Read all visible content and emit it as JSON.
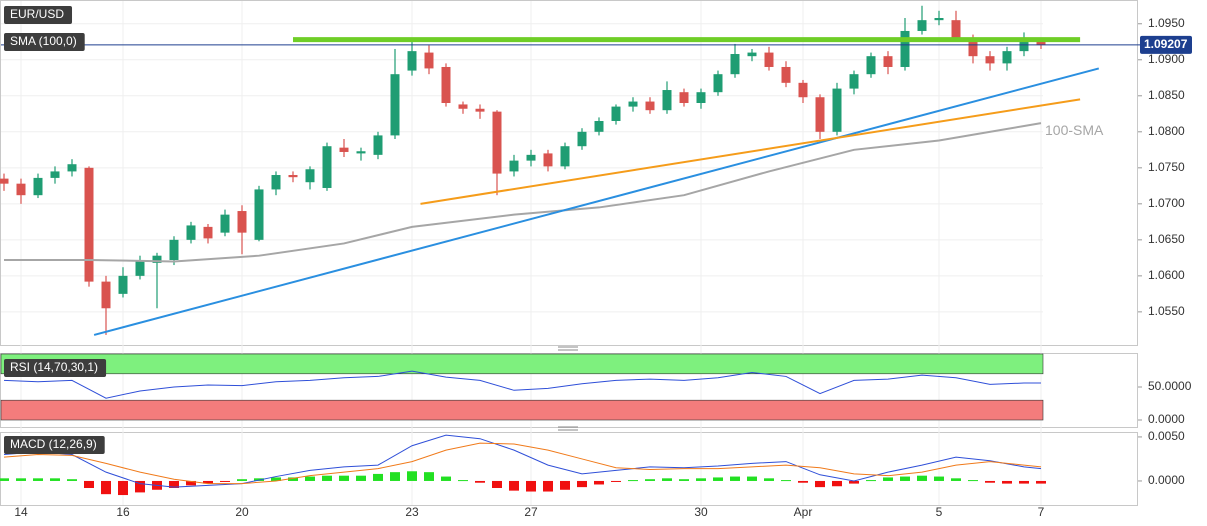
{
  "chart_data": [
    {
      "type": "candlestick",
      "title": "EUR/USD",
      "indicator_label": "SMA (100,0)",
      "categories": [
        null,
        "14",
        null,
        null,
        null,
        null,
        null,
        "16",
        null,
        null,
        null,
        null,
        null,
        null,
        "20",
        null,
        null,
        null,
        null,
        null,
        null,
        null,
        null,
        null,
        "23",
        null,
        null,
        null,
        null,
        null,
        null,
        "27",
        null,
        null,
        null,
        null,
        null,
        null,
        null,
        null,
        null,
        "30",
        null,
        null,
        null,
        null,
        null,
        "Apr",
        null,
        null,
        null,
        null,
        null,
        null,
        null,
        "5",
        null,
        null,
        null,
        null,
        null,
        "7"
      ],
      "candles": [
        [
          1.0735,
          1.0742,
          1.0718,
          1.0728
        ],
        [
          1.0728,
          1.0735,
          1.07,
          1.0712
        ],
        [
          1.0712,
          1.0742,
          1.0708,
          1.0736
        ],
        [
          1.0736,
          1.0752,
          1.0728,
          1.0745
        ],
        [
          1.0745,
          1.0762,
          1.0738,
          1.0755
        ],
        [
          1.075,
          1.0752,
          1.0585,
          1.0592
        ],
        [
          1.0592,
          1.06,
          1.0518,
          1.0555
        ],
        [
          1.0575,
          1.0612,
          1.057,
          1.06
        ],
        [
          1.06,
          1.0628,
          1.0595,
          1.062
        ],
        [
          1.0618,
          1.0632,
          1.0555,
          1.0628
        ],
        [
          1.0622,
          1.0655,
          1.0615,
          1.065
        ],
        [
          1.065,
          1.0675,
          1.0645,
          1.067
        ],
        [
          1.0668,
          1.0672,
          1.0645,
          1.0652
        ],
        [
          1.066,
          1.0692,
          1.0655,
          1.0685
        ],
        [
          1.069,
          1.0698,
          1.063,
          1.066
        ],
        [
          1.065,
          1.0725,
          1.0648,
          1.072
        ],
        [
          1.072,
          1.0745,
          1.0712,
          1.074
        ],
        [
          1.074,
          1.0745,
          1.073,
          1.0737
        ],
        [
          1.073,
          1.0752,
          1.072,
          1.0748
        ],
        [
          1.0722,
          1.0785,
          1.0718,
          1.078
        ],
        [
          1.0778,
          1.079,
          1.0765,
          1.0772
        ],
        [
          1.077,
          1.0778,
          1.076,
          1.0773
        ],
        [
          1.0768,
          1.08,
          1.0762,
          1.0795
        ],
        [
          1.0795,
          1.0915,
          1.079,
          1.088
        ],
        [
          1.0885,
          1.0925,
          1.0878,
          1.0912
        ],
        [
          1.091,
          1.092,
          1.088,
          1.0888
        ],
        [
          1.089,
          1.0895,
          1.0835,
          1.084
        ],
        [
          1.0838,
          1.0842,
          1.0825,
          1.0832
        ],
        [
          1.0832,
          1.0838,
          1.0818,
          1.0828
        ],
        [
          1.0828,
          1.083,
          1.0712,
          1.0742
        ],
        [
          1.0745,
          1.0768,
          1.0738,
          1.076
        ],
        [
          1.076,
          1.0775,
          1.0752,
          1.0768
        ],
        [
          1.077,
          1.0775,
          1.0745,
          1.0752
        ],
        [
          1.0752,
          1.0785,
          1.0748,
          1.078
        ],
        [
          1.078,
          1.0805,
          1.0775,
          1.08
        ],
        [
          1.08,
          1.082,
          1.0795,
          1.0815
        ],
        [
          1.0815,
          1.0838,
          1.081,
          1.0835
        ],
        [
          1.0835,
          1.0848,
          1.0828,
          1.0842
        ],
        [
          1.0842,
          1.0848,
          1.0825,
          1.083
        ],
        [
          1.083,
          1.087,
          1.0825,
          1.0858
        ],
        [
          1.0855,
          1.086,
          1.0835,
          1.084
        ],
        [
          1.084,
          1.086,
          1.0832,
          1.0855
        ],
        [
          1.0855,
          1.0885,
          1.085,
          1.088
        ],
        [
          1.088,
          1.0922,
          1.0875,
          1.0908
        ],
        [
          1.0905,
          1.0915,
          1.0898,
          1.091
        ],
        [
          1.091,
          1.0918,
          1.0885,
          1.089
        ],
        [
          1.089,
          1.0898,
          1.0862,
          1.0868
        ],
        [
          1.0868,
          1.0872,
          1.084,
          1.0848
        ],
        [
          1.0848,
          1.0852,
          1.079,
          1.08
        ],
        [
          1.08,
          1.0868,
          1.0795,
          1.086
        ],
        [
          1.086,
          1.0885,
          1.0852,
          1.088
        ],
        [
          1.088,
          1.091,
          1.0875,
          1.0905
        ],
        [
          1.0905,
          1.0912,
          1.088,
          1.089
        ],
        [
          1.089,
          1.0958,
          1.0885,
          1.094
        ],
        [
          1.094,
          1.0975,
          1.0935,
          1.0955
        ],
        [
          1.0955,
          1.0968,
          1.0948,
          1.0958
        ],
        [
          1.0955,
          1.0968,
          1.0925,
          1.093
        ],
        [
          1.093,
          1.0935,
          1.0895,
          1.0905
        ],
        [
          1.0905,
          1.0912,
          1.0885,
          1.0895
        ],
        [
          1.0895,
          1.0918,
          1.0885,
          1.0912
        ],
        [
          1.0912,
          1.0938,
          1.0905,
          1.0925
        ],
        [
          1.0925,
          1.093,
          1.0915,
          1.0921
        ]
      ],
      "up_color": "#1f9d73",
      "down_color": "#d9534f",
      "ylim": [
        1.0504,
        1.0983
      ],
      "yticks": [
        {
          "value": 1.055,
          "label": "1.0550"
        },
        {
          "value": 1.06,
          "label": "1.0600"
        },
        {
          "value": 1.065,
          "label": "1.0650"
        },
        {
          "value": 1.07,
          "label": "1.0700"
        },
        {
          "value": 1.075,
          "label": "1.0750"
        },
        {
          "value": 1.08,
          "label": "1.0800"
        },
        {
          "value": 1.085,
          "label": "1.0850"
        },
        {
          "value": 1.09,
          "label": "1.0900"
        },
        {
          "value": 1.095,
          "label": "1.0950"
        }
      ],
      "grid": true,
      "lines": [
        {
          "name": "100-SMA",
          "color": "#a6a6a6",
          "x": [
            0,
            5,
            10,
            15,
            20,
            24,
            30,
            35,
            40,
            45,
            50,
            55,
            61
          ],
          "values": [
            1.0622,
            1.0622,
            1.062,
            1.0628,
            1.0645,
            1.0668,
            1.0685,
            1.0695,
            1.0712,
            1.0745,
            1.0775,
            1.0788,
            1.0812
          ]
        },
        {
          "color": "#6fce27",
          "x": [
            17,
            63.3
          ],
          "values": [
            1.0928,
            1.0928
          ]
        },
        {
          "color": "#2a8fe0",
          "x": [
            5.3,
            64.4
          ],
          "values": [
            1.0518,
            1.0888
          ]
        },
        {
          "color": "#f59c1a",
          "x": [
            24.5,
            63.3
          ],
          "values": [
            1.07,
            1.0845
          ]
        }
      ],
      "last_price": {
        "value": 1.09207,
        "label": "1.09207"
      }
    },
    {
      "type": "rsi",
      "title": "RSI (14,70,30,1)",
      "overbought": 70,
      "oversold": 30,
      "ylim": [
        -10.6,
        101.5
      ],
      "yticks": [
        {
          "value": 0,
          "label": "0.0000"
        },
        {
          "value": 50,
          "label": "50.0000"
        }
      ],
      "series": [
        {
          "color": "#2f4fd8",
          "x": [
            0,
            2,
            4,
            6,
            8,
            10,
            12,
            14,
            16,
            18,
            20,
            22,
            24,
            26,
            28,
            30,
            32,
            34,
            36,
            38,
            40,
            42,
            44,
            46,
            48,
            50,
            52,
            54,
            56,
            58,
            60,
            61
          ],
          "values": [
            60,
            58,
            60,
            33,
            44,
            50,
            53,
            52,
            58,
            60,
            64,
            66,
            74,
            65,
            60,
            45,
            48,
            55,
            60,
            62,
            60,
            64,
            72,
            66,
            40,
            60,
            62,
            68,
            64,
            54,
            56,
            56
          ]
        }
      ]
    },
    {
      "type": "macd",
      "title": "MACD (12,26,9)",
      "ylim": [
        -0.00273,
        0.00556
      ],
      "yticks": [
        {
          "value": 0,
          "label": "0.0000"
        },
        {
          "value": 0.005,
          "label": "0.0050"
        }
      ],
      "up_color": "#22e022",
      "down_color": "#f01010",
      "histogram": [
        0.0003,
        0.0003,
        0.0003,
        0.0003,
        0.0002,
        -0.0008,
        -0.0015,
        -0.0016,
        -0.0013,
        -0.001,
        -0.0008,
        -0.0005,
        -0.0003,
        -0.0001,
        0.0002,
        0.0003,
        0.0004,
        0.0004,
        0.0005,
        0.0006,
        0.0006,
        0.0006,
        0.0008,
        0.001,
        0.0011,
        0.001,
        0.0005,
        0.0001,
        -0.0002,
        -0.0008,
        -0.0011,
        -0.0012,
        -0.0012,
        -0.001,
        -0.0007,
        -0.0004,
        -0.0001,
        0.0001,
        0.0002,
        0.0003,
        0.0002,
        0.0003,
        0.0004,
        0.0005,
        0.0005,
        0.0003,
        0.0001,
        -0.0002,
        -0.0007,
        -0.0006,
        -0.0003,
        0.0001,
        0.0004,
        0.0005,
        0.0006,
        0.0005,
        0.0003,
        0.0001,
        -0.0002,
        -0.0003,
        -0.0003,
        -0.0003
      ],
      "series": [
        {
          "color": "#2f4fd8",
          "x": [
            0,
            2,
            4,
            6,
            8,
            10,
            12,
            14,
            16,
            18,
            20,
            22,
            24,
            26,
            28,
            30,
            32,
            34,
            36,
            38,
            40,
            42,
            44,
            46,
            48,
            50,
            52,
            54,
            56,
            58,
            60,
            61
          ],
          "values": [
            0.003,
            0.0033,
            0.003,
            0.001,
            -0.0003,
            -0.0007,
            -0.0005,
            -0.0003,
            0.0005,
            0.0012,
            0.0016,
            0.0018,
            0.004,
            0.0052,
            0.0048,
            0.0035,
            0.0018,
            0.0008,
            0.0012,
            0.0016,
            0.0015,
            0.0017,
            0.002,
            0.0022,
            0.0007,
            0.0,
            0.001,
            0.0018,
            0.0027,
            0.0023,
            0.0016,
            0.0014
          ]
        },
        {
          "color": "#f07a1a",
          "x": [
            0,
            2,
            4,
            6,
            8,
            10,
            12,
            14,
            16,
            18,
            20,
            22,
            24,
            26,
            28,
            30,
            32,
            34,
            36,
            38,
            40,
            42,
            44,
            46,
            48,
            50,
            52,
            54,
            56,
            58,
            60,
            61
          ],
          "values": [
            0.0027,
            0.003,
            0.0029,
            0.002,
            0.001,
            0.0002,
            -0.0003,
            -0.0003,
            0.0,
            0.0006,
            0.001,
            0.0014,
            0.0022,
            0.0035,
            0.0043,
            0.0042,
            0.0035,
            0.0025,
            0.0015,
            0.0013,
            0.0014,
            0.0014,
            0.0016,
            0.0018,
            0.0015,
            0.0008,
            0.0006,
            0.001,
            0.0018,
            0.0022,
            0.0018,
            0.0016
          ]
        }
      ]
    }
  ]
}
